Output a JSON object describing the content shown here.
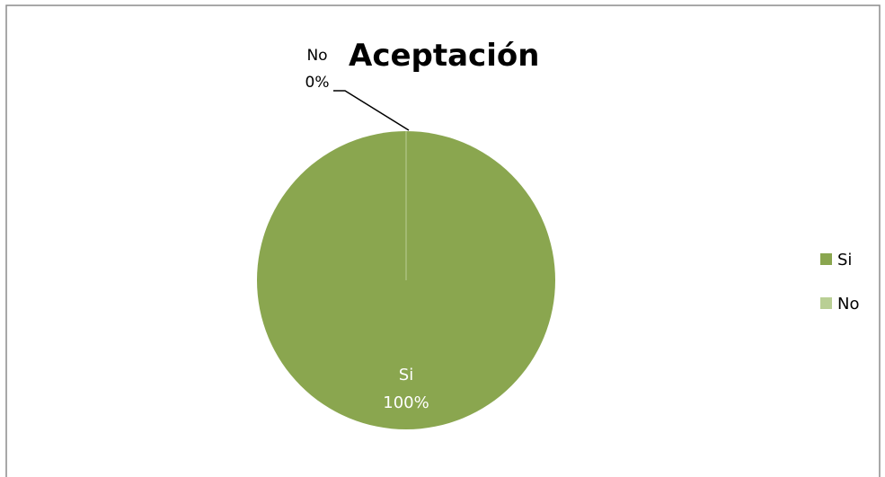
{
  "chart_data": {
    "type": "pie",
    "title": "Aceptación",
    "categories": [
      "Si",
      "No"
    ],
    "values": [
      100,
      0
    ],
    "data_labels": [
      {
        "category": "Si",
        "percent": "100%"
      },
      {
        "category": "No",
        "percent": "0%"
      }
    ],
    "legend": {
      "placement": "right",
      "entries": [
        "Si",
        "No"
      ]
    },
    "colors": {
      "Si": "#8aa64f",
      "No": "#b9cf94",
      "frame": "#8c8c8c",
      "leader": "#000000"
    }
  }
}
